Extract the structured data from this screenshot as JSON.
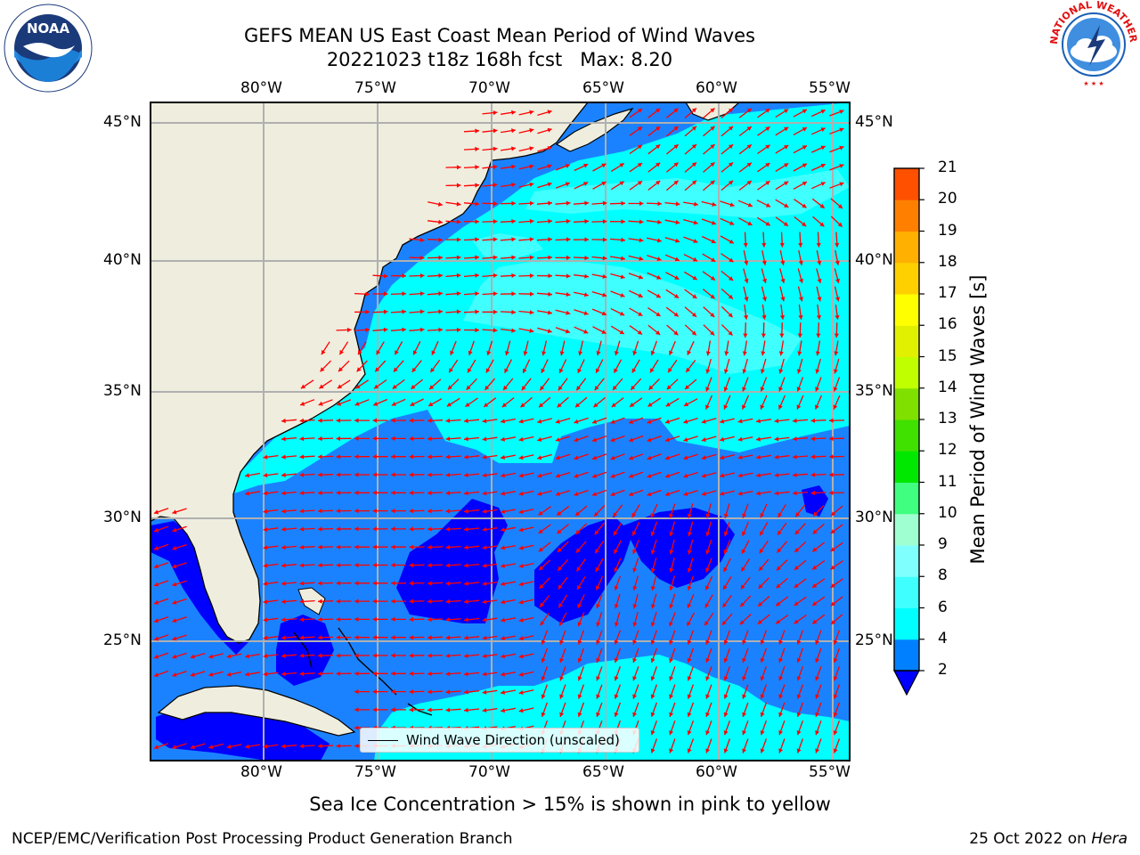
{
  "header": {
    "title_line1": "GEFS MEAN US East Coast Mean Period of Wind Waves",
    "title_line2": "20221023 t18z 168h fcst   Max: 8.20"
  },
  "map": {
    "lon_range": [
      -85,
      -54
    ],
    "lat_range": [
      20.5,
      46
    ],
    "x_ticks": [
      "80°W",
      "75°W",
      "70°W",
      "65°W",
      "60°W",
      "55°W"
    ],
    "y_ticks": [
      "45°N",
      "40°N",
      "35°N",
      "30°N",
      "25°N"
    ],
    "land_color": "#efedde",
    "ocean_base_color": "#1b82ff",
    "arrow_color": "#ff0000",
    "grid": true
  },
  "legend": {
    "label": "Wind Wave Direction (unscaled)"
  },
  "colorbar": {
    "title": "Mean Period of Wind Waves [s]",
    "ticks": [
      "2",
      "4",
      "6",
      "8",
      "9",
      "10",
      "11",
      "12",
      "13",
      "14",
      "15",
      "16",
      "17",
      "18",
      "19",
      "20",
      "21"
    ],
    "colors": [
      "#0080ff",
      "#00ffff",
      "#40ffff",
      "#80ffff",
      "#a0ffd0",
      "#40ff80",
      "#00e800",
      "#40e000",
      "#80e000",
      "#c0ff00",
      "#e0f000",
      "#ffff00",
      "#ffd000",
      "#ffb000",
      "#ff8000",
      "#ff5000",
      "#ff2000",
      "#ff0000"
    ],
    "extend_color": "#0000ff"
  },
  "footer": {
    "note": "Sea Ice Concentration > 15% is shown in pink to yellow",
    "left": "NCEP/EMC/Verification Post Processing Product Generation Branch",
    "right_date": "25 Oct 2022 on",
    "right_host": "Hera"
  },
  "logos": {
    "noaa": "NOAA",
    "nws": "NATIONAL WEATHER SERVICE"
  }
}
